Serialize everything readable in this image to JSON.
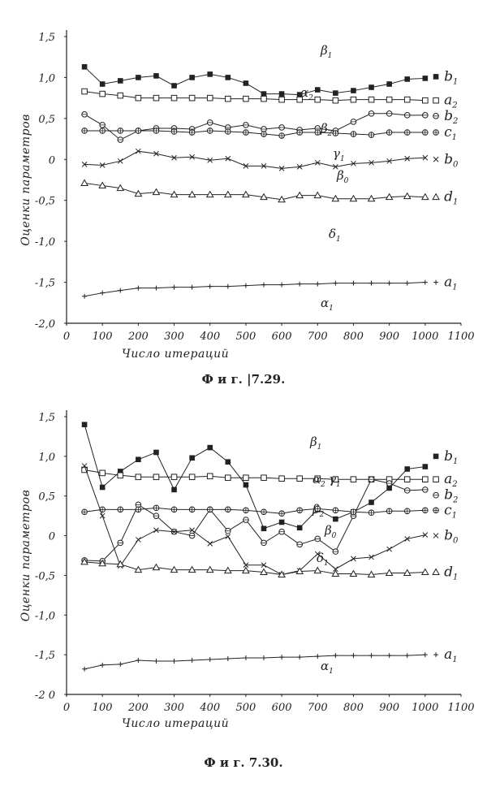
{
  "chart_data": [
    {
      "type": "line",
      "title": "",
      "caption": "Ф и г. |7.29.",
      "xlabel": "Число итераций",
      "ylabel": "Оценки параметров",
      "xlim": [
        0,
        1100
      ],
      "ylim": [
        -2.0,
        1.5
      ],
      "xticks": [
        "0",
        "100",
        "200",
        "300",
        "400",
        "500",
        "600",
        "700",
        "800",
        "900",
        "1000",
        "1100"
      ],
      "yticks": [
        "1,5",
        "1,0",
        "0,5",
        "0",
        "-0,5",
        "-1,0",
        "-1,5",
        "-2,0"
      ],
      "x": [
        50,
        100,
        150,
        200,
        250,
        300,
        350,
        400,
        450,
        500,
        550,
        600,
        650,
        700,
        750,
        800,
        850,
        900,
        950,
        1000
      ],
      "series": [
        {
          "name": "β1",
          "true_label": "b1",
          "marker": "filled-square",
          "values": [
            1.13,
            0.92,
            0.96,
            1.0,
            1.02,
            0.9,
            1.0,
            1.04,
            1.0,
            0.93,
            0.8,
            0.8,
            0.79,
            0.85,
            0.81,
            0.84,
            0.88,
            0.92,
            0.98,
            0.99
          ],
          "true_value": 1.01
        },
        {
          "name": "α2",
          "true_label": "a2",
          "marker": "open-square",
          "values": [
            0.83,
            0.8,
            0.78,
            0.75,
            0.75,
            0.75,
            0.75,
            0.75,
            0.74,
            0.74,
            0.74,
            0.73,
            0.73,
            0.73,
            0.72,
            0.73,
            0.73,
            0.73,
            0.73,
            0.72
          ],
          "true_value": 0.72
        },
        {
          "name": "β2",
          "true_label": "b2",
          "marker": "open-circle",
          "values": [
            0.55,
            0.42,
            0.24,
            0.35,
            0.38,
            0.38,
            0.37,
            0.45,
            0.39,
            0.42,
            0.37,
            0.39,
            0.36,
            0.38,
            0.35,
            0.46,
            0.56,
            0.56,
            0.54,
            0.54
          ],
          "true_value": 0.53
        },
        {
          "name": "γ1",
          "true_label": "c1",
          "marker": "circle-plus",
          "values": [
            0.35,
            0.35,
            0.35,
            0.35,
            0.35,
            0.34,
            0.33,
            0.35,
            0.34,
            0.33,
            0.31,
            0.29,
            0.33,
            0.33,
            0.32,
            0.31,
            0.3,
            0.33,
            0.33,
            0.33
          ],
          "true_value": 0.33
        },
        {
          "name": "β0",
          "true_label": "b0",
          "marker": "x",
          "values": [
            -0.06,
            -0.07,
            -0.02,
            0.1,
            0.07,
            0.02,
            0.03,
            -0.01,
            0.01,
            -0.08,
            -0.08,
            -0.11,
            -0.09,
            -0.04,
            -0.09,
            -0.05,
            -0.04,
            -0.02,
            0.01,
            0.02
          ],
          "true_value": 0.0
        },
        {
          "name": "δ1",
          "true_label": "d1",
          "marker": "triangle",
          "values": [
            -0.29,
            -0.32,
            -0.35,
            -0.42,
            -0.4,
            -0.43,
            -0.43,
            -0.43,
            -0.43,
            -0.43,
            -0.46,
            -0.49,
            -0.44,
            -0.44,
            -0.48,
            -0.48,
            -0.48,
            -0.46,
            -0.45,
            -0.46
          ],
          "true_value": -0.46
        },
        {
          "name": "α1",
          "true_label": "a1",
          "marker": "plus",
          "values": [
            -1.67,
            -1.63,
            -1.6,
            -1.57,
            -1.57,
            -1.56,
            -1.56,
            -1.55,
            -1.55,
            -1.54,
            -1.53,
            -1.53,
            -1.52,
            -1.52,
            -1.51,
            -1.51,
            -1.51,
            -1.51,
            -1.51,
            -1.5
          ],
          "true_value": -1.5
        }
      ]
    },
    {
      "type": "line",
      "title": "",
      "caption": "Ф и г. 7.30.",
      "xlabel": "Число итераций",
      "ylabel": "Оценки параметров",
      "xlim": [
        0,
        1100
      ],
      "ylim": [
        -2.0,
        1.5
      ],
      "xticks": [
        "0",
        "100",
        "200",
        "300",
        "400",
        "500",
        "600",
        "700",
        "800",
        "900",
        "1000",
        "1100"
      ],
      "yticks": [
        "1,5",
        "1,0",
        "0,5",
        "0",
        "-0,5",
        "-1,0",
        "-1,5",
        "-2 0"
      ],
      "x": [
        50,
        100,
        150,
        200,
        250,
        300,
        350,
        400,
        450,
        500,
        550,
        600,
        650,
        700,
        750,
        800,
        850,
        900,
        950,
        1000
      ],
      "series": [
        {
          "name": "β1",
          "true_label": "b1",
          "marker": "filled-square",
          "values": [
            1.4,
            0.61,
            0.81,
            0.96,
            1.05,
            0.58,
            0.98,
            1.11,
            0.93,
            0.64,
            0.09,
            0.17,
            0.1,
            0.33,
            0.21,
            0.3,
            0.42,
            0.6,
            0.84,
            0.87
          ],
          "true_value": 1.0
        },
        {
          "name": "α2",
          "true_label": "a2",
          "marker": "open-square",
          "values": [
            0.83,
            0.79,
            0.76,
            0.74,
            0.74,
            0.74,
            0.74,
            0.75,
            0.73,
            0.73,
            0.73,
            0.72,
            0.72,
            0.72,
            0.71,
            0.71,
            0.71,
            0.71,
            0.71,
            0.71
          ],
          "true_value": 0.71
        },
        {
          "name": "β2",
          "true_label": "b2",
          "marker": "open-circle",
          "values": [
            -0.31,
            -0.32,
            -0.09,
            0.39,
            0.25,
            0.05,
            0.0,
            0.33,
            0.06,
            0.2,
            -0.09,
            0.05,
            -0.11,
            -0.04,
            -0.2,
            0.25,
            0.71,
            0.66,
            0.57,
            0.58
          ],
          "true_value": 0.51
        },
        {
          "name": "γ1",
          "true_label": "c1",
          "marker": "circle-plus",
          "values": [
            0.3,
            0.33,
            0.33,
            0.33,
            0.35,
            0.33,
            0.33,
            0.33,
            0.33,
            0.32,
            0.3,
            0.28,
            0.32,
            0.34,
            0.32,
            0.3,
            0.29,
            0.31,
            0.31,
            0.32
          ],
          "true_value": 0.32
        },
        {
          "name": "β0",
          "true_label": "b0",
          "marker": "x",
          "values": [
            0.88,
            0.25,
            -0.38,
            -0.05,
            0.07,
            0.05,
            0.07,
            -0.1,
            -0.01,
            -0.37,
            -0.37,
            -0.49,
            -0.44,
            -0.23,
            -0.42,
            -0.29,
            -0.27,
            -0.17,
            -0.04,
            0.01
          ],
          "true_value": 0.0
        },
        {
          "name": "δ1",
          "true_label": "d1",
          "marker": "triangle",
          "values": [
            -0.33,
            -0.35,
            -0.36,
            -0.43,
            -0.4,
            -0.43,
            -0.43,
            -0.43,
            -0.44,
            -0.44,
            -0.46,
            -0.49,
            -0.45,
            -0.44,
            -0.48,
            -0.48,
            -0.49,
            -0.47,
            -0.47,
            -0.46
          ],
          "true_value": -0.46
        },
        {
          "name": "α1",
          "true_label": "a1",
          "marker": "plus",
          "values": [
            -1.68,
            -1.63,
            -1.62,
            -1.57,
            -1.58,
            -1.58,
            -1.57,
            -1.56,
            -1.55,
            -1.54,
            -1.54,
            -1.53,
            -1.53,
            -1.52,
            -1.51,
            -1.51,
            -1.51,
            -1.51,
            -1.51,
            -1.5
          ],
          "true_value": -1.5
        }
      ]
    }
  ],
  "colors": {
    "ink": "#222222",
    "paper": "#ffffff"
  }
}
